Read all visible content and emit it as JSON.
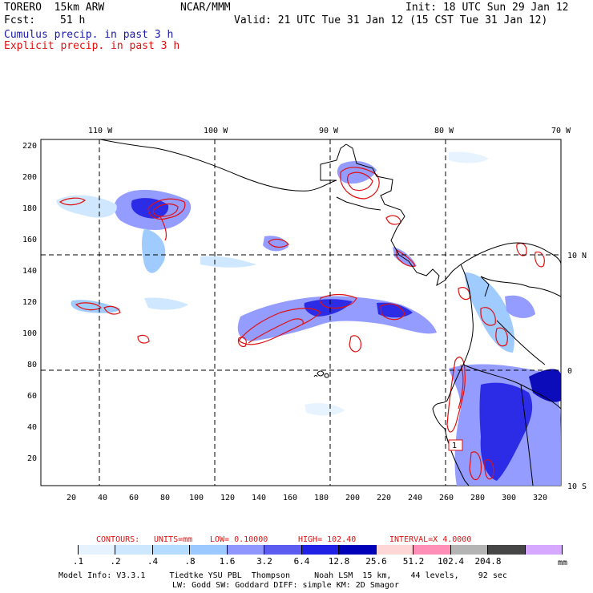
{
  "header": {
    "model": "TORERO  15km ARW",
    "center": "NCAR/MMM",
    "init": "Init: 18 UTC Sun 29 Jan 12",
    "fcst_label": "Fcst:",
    "fcst_value": "51 h",
    "valid": "Valid: 21 UTC Tue 31 Jan 12 (15 CST Tue 31 Jan 12)",
    "legend_cumulus": "Cumulus precip. in past 3 h",
    "legend_explicit": "Explicit precip. in past 3 h"
  },
  "map": {
    "lon_labels": [
      "110 W",
      "100 W",
      "90 W",
      "80 W",
      "70 W"
    ],
    "lat_labels": [
      "10 N",
      "0",
      "10 S"
    ],
    "y_ticks": [
      "220",
      "200",
      "180",
      "160",
      "140",
      "120",
      "100",
      "80",
      "60",
      "40",
      "20"
    ],
    "x_ticks": [
      "20",
      "40",
      "60",
      "80",
      "100",
      "120",
      "140",
      "160",
      "180",
      "200",
      "220",
      "240",
      "260",
      "280",
      "300",
      "320"
    ],
    "point_label": "1"
  },
  "contour_info": {
    "contours": "CONTOURS:",
    "units": "UNITS=mm",
    "low": "LOW= 0.10000",
    "high": "HIGH= 102.40",
    "interval": "INTERVAL=X 4.0000"
  },
  "colorbar": {
    "colors": [
      "#ffffff",
      "#e6f3ff",
      "#cde7ff",
      "#b4dcff",
      "#9bc9ff",
      "#8f97ff",
      "#5c5cf0",
      "#2121e6",
      "#0000b8",
      "#ffd6d6",
      "#ff8fb6",
      "#b4b4b4",
      "#464646",
      "#d7a8ff"
    ],
    "labels": [
      ".1",
      ".2",
      ".4",
      ".8",
      "1.6",
      "3.2",
      "6.4",
      "12.8",
      "25.6",
      "51.2",
      "102.4",
      "204.8"
    ],
    "unit": "mm"
  },
  "footer": {
    "line1": "Model Info: V3.3.1     Tiedtke YSU PBL  Thompson     Noah LSM  15 km,    44 levels,    92 sec",
    "line2": "LW: Godd SW: Goddard DIFF: simple KM: 2D Smagor"
  }
}
